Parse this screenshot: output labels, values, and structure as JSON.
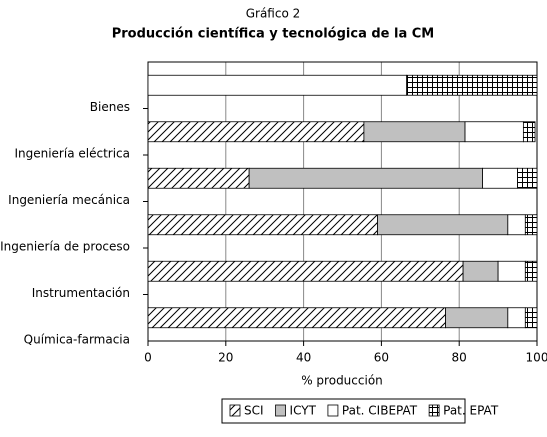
{
  "chart_data": {
    "type": "stacked_barh",
    "title": "Gráfico 2",
    "subtitle": "Producción científica y tecnológica de la CM",
    "x_label": "% producción",
    "categories": [
      "Bienes",
      "Ingeniería eléctrica",
      "Ingeniería mecánica",
      "Ingeniería de proceso",
      "Instrumentación",
      "Química-farmacia"
    ],
    "series": [
      {
        "name": "SCI",
        "color": "#ffffff",
        "pattern": "diagonal",
        "values": [
          0,
          55.5,
          26,
          59,
          81,
          76.5
        ]
      },
      {
        "name": "ICYT",
        "color": "#c0c0c0",
        "pattern": "none",
        "values": [
          0,
          26,
          60,
          33.5,
          9,
          16
        ]
      },
      {
        "name": "Pat. CIBEPAT",
        "color": "#ffffff",
        "pattern": "none",
        "values": [
          66.5,
          15,
          9,
          4.5,
          7,
          4.5
        ]
      },
      {
        "name": "Pat. EPAT",
        "color": "#ffffff",
        "pattern": "grid",
        "values": [
          33.5,
          3,
          5,
          3,
          3,
          3
        ]
      }
    ],
    "xlim": [
      0,
      100
    ],
    "xticks": [
      0,
      20,
      40,
      60,
      80,
      100
    ],
    "grid": true,
    "legend": "bottom"
  }
}
